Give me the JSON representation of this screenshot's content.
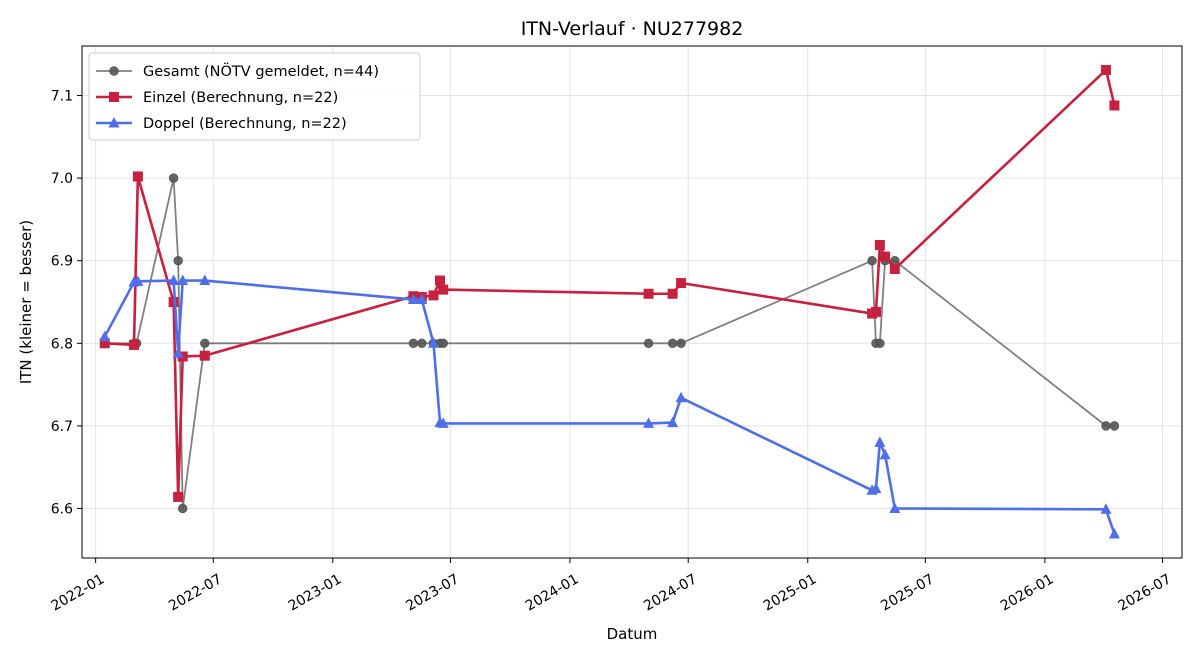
{
  "chart_data": {
    "type": "line",
    "title": "ITN-Verlauf · NU277982",
    "xlabel": "Datum",
    "ylabel": "ITN  (kleiner = besser)",
    "x_axis_type": "date",
    "xlim": [
      "2021-12-11",
      "2026-07-31"
    ],
    "ylim": [
      6.54,
      7.16
    ],
    "x_ticks": [
      "2022-01",
      "2022-07",
      "2023-01",
      "2023-07",
      "2024-01",
      "2024-07",
      "2025-01",
      "2025-07",
      "2026-01",
      "2026-07"
    ],
    "y_ticks": [
      "6.6",
      "6.7",
      "6.8",
      "6.9",
      "7.0",
      "7.1"
    ],
    "grid": true,
    "legend_position": "top-left",
    "series": [
      {
        "name": "Gesamt (NÖTV gemeldet, n=44)",
        "color": "#555555",
        "marker": "circle",
        "points": [
          {
            "x": "2022-01-15",
            "y": 6.8
          },
          {
            "x": "2022-03-01",
            "y": 6.8
          },
          {
            "x": "2022-03-05",
            "y": 6.8
          },
          {
            "x": "2022-05-01",
            "y": 7.0
          },
          {
            "x": "2022-05-08",
            "y": 6.9
          },
          {
            "x": "2022-05-15",
            "y": 6.6
          },
          {
            "x": "2022-06-18",
            "y": 6.8
          },
          {
            "x": "2023-05-05",
            "y": 6.8
          },
          {
            "x": "2023-05-18",
            "y": 6.8
          },
          {
            "x": "2023-06-05",
            "y": 6.8
          },
          {
            "x": "2023-06-15",
            "y": 6.8
          },
          {
            "x": "2023-06-20",
            "y": 6.8
          },
          {
            "x": "2024-05-01",
            "y": 6.8
          },
          {
            "x": "2024-06-07",
            "y": 6.8
          },
          {
            "x": "2024-06-20",
            "y": 6.8
          },
          {
            "x": "2025-04-10",
            "y": 6.9
          },
          {
            "x": "2025-04-16",
            "y": 6.8
          },
          {
            "x": "2025-04-22",
            "y": 6.8
          },
          {
            "x": "2025-04-30",
            "y": 6.9
          },
          {
            "x": "2025-05-15",
            "y": 6.9
          },
          {
            "x": "2026-04-05",
            "y": 6.7
          },
          {
            "x": "2026-04-18",
            "y": 6.7
          }
        ]
      },
      {
        "name": "Einzel (Berechnung, n=22)",
        "color": "#c8203f",
        "marker": "square",
        "points": [
          {
            "x": "2022-01-15",
            "y": 6.8
          },
          {
            "x": "2022-03-01",
            "y": 6.798
          },
          {
            "x": "2022-03-07",
            "y": 7.002
          },
          {
            "x": "2022-05-01",
            "y": 6.85
          },
          {
            "x": "2022-05-08",
            "y": 6.614
          },
          {
            "x": "2022-05-15",
            "y": 6.784
          },
          {
            "x": "2022-06-18",
            "y": 6.785
          },
          {
            "x": "2023-05-05",
            "y": 6.857
          },
          {
            "x": "2023-05-18",
            "y": 6.856
          },
          {
            "x": "2023-06-05",
            "y": 6.858
          },
          {
            "x": "2023-06-15",
            "y": 6.876
          },
          {
            "x": "2023-06-20",
            "y": 6.865
          },
          {
            "x": "2024-05-01",
            "y": 6.86
          },
          {
            "x": "2024-06-07",
            "y": 6.86
          },
          {
            "x": "2024-06-20",
            "y": 6.873
          },
          {
            "x": "2025-04-10",
            "y": 6.836
          },
          {
            "x": "2025-04-16",
            "y": 6.838
          },
          {
            "x": "2025-04-22",
            "y": 6.919
          },
          {
            "x": "2025-04-30",
            "y": 6.905
          },
          {
            "x": "2025-05-15",
            "y": 6.89
          },
          {
            "x": "2026-04-05",
            "y": 7.131
          },
          {
            "x": "2026-04-18",
            "y": 7.088
          }
        ]
      },
      {
        "name": "Doppel (Berechnung, n=22)",
        "color": "#4f6fe8",
        "marker": "triangle",
        "points": [
          {
            "x": "2022-01-15",
            "y": 6.808
          },
          {
            "x": "2022-03-01",
            "y": 6.874
          },
          {
            "x": "2022-03-07",
            "y": 6.875
          },
          {
            "x": "2022-05-01",
            "y": 6.876
          },
          {
            "x": "2022-05-08",
            "y": 6.788
          },
          {
            "x": "2022-05-15",
            "y": 6.876
          },
          {
            "x": "2022-06-18",
            "y": 6.876
          },
          {
            "x": "2023-05-05",
            "y": 6.853
          },
          {
            "x": "2023-05-18",
            "y": 6.853
          },
          {
            "x": "2023-06-05",
            "y": 6.8
          },
          {
            "x": "2023-06-15",
            "y": 6.704
          },
          {
            "x": "2023-06-20",
            "y": 6.703
          },
          {
            "x": "2024-05-01",
            "y": 6.703
          },
          {
            "x": "2024-06-07",
            "y": 6.704
          },
          {
            "x": "2024-06-20",
            "y": 6.734
          },
          {
            "x": "2025-04-10",
            "y": 6.622
          },
          {
            "x": "2025-04-16",
            "y": 6.624
          },
          {
            "x": "2025-04-22",
            "y": 6.68
          },
          {
            "x": "2025-04-30",
            "y": 6.665
          },
          {
            "x": "2025-05-15",
            "y": 6.6
          },
          {
            "x": "2026-04-05",
            "y": 6.599
          },
          {
            "x": "2026-04-18",
            "y": 6.569
          }
        ]
      }
    ]
  }
}
